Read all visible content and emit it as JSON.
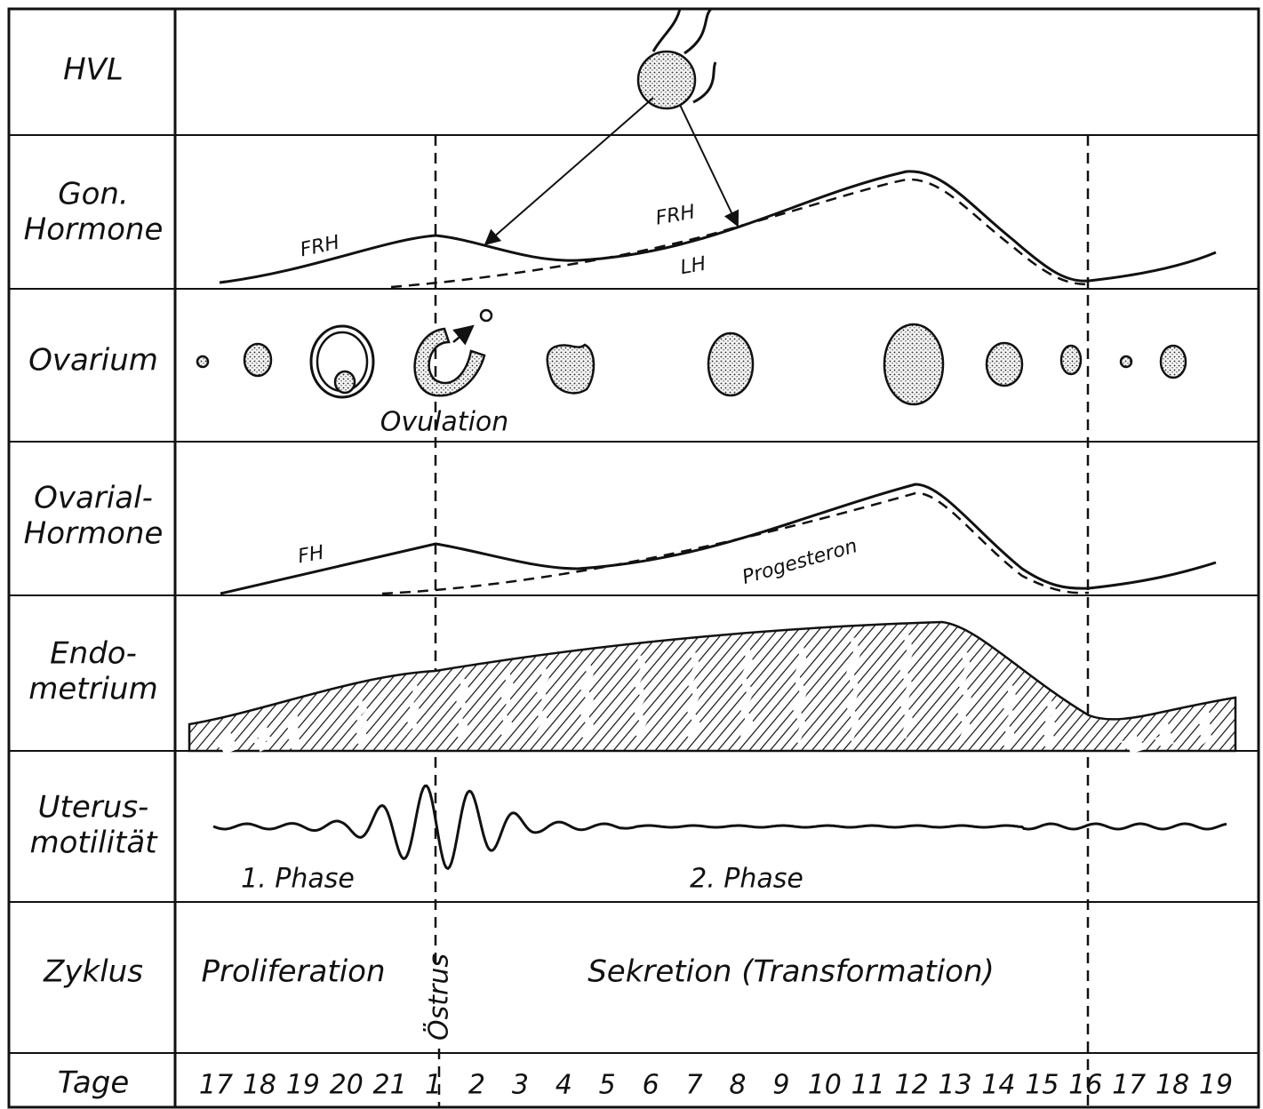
{
  "rows": [
    {
      "label": [
        "HVL"
      ]
    },
    {
      "label": [
        "Gon.",
        "Hormone"
      ]
    },
    {
      "label": [
        "Ovarium"
      ]
    },
    {
      "label": [
        "Ovarial-",
        "Hormone"
      ]
    },
    {
      "label": [
        "Endo-",
        "metrium"
      ]
    },
    {
      "label": [
        "Uterus-",
        "motilität"
      ]
    },
    {
      "label": [
        "Zyklus"
      ]
    },
    {
      "label": [
        "Tage"
      ]
    }
  ],
  "gon_hormone": {
    "labels": [
      "FRH",
      "FRH",
      "LH"
    ]
  },
  "ovarium": {
    "label": "Ovulation"
  },
  "ovarial_hormone": {
    "labels": [
      "FH",
      "Progesteron"
    ]
  },
  "uterus": {
    "labels": [
      "1. Phase",
      "2. Phase"
    ]
  },
  "zyklus": {
    "labels": [
      "Proliferation",
      "Östrus",
      "Sekretion (Transformation)"
    ]
  },
  "tage": {
    "days": [
      17,
      18,
      19,
      20,
      21,
      1,
      2,
      3,
      4,
      5,
      6,
      7,
      8,
      9,
      10,
      11,
      12,
      13,
      14,
      15,
      16,
      17,
      18,
      19
    ]
  }
}
